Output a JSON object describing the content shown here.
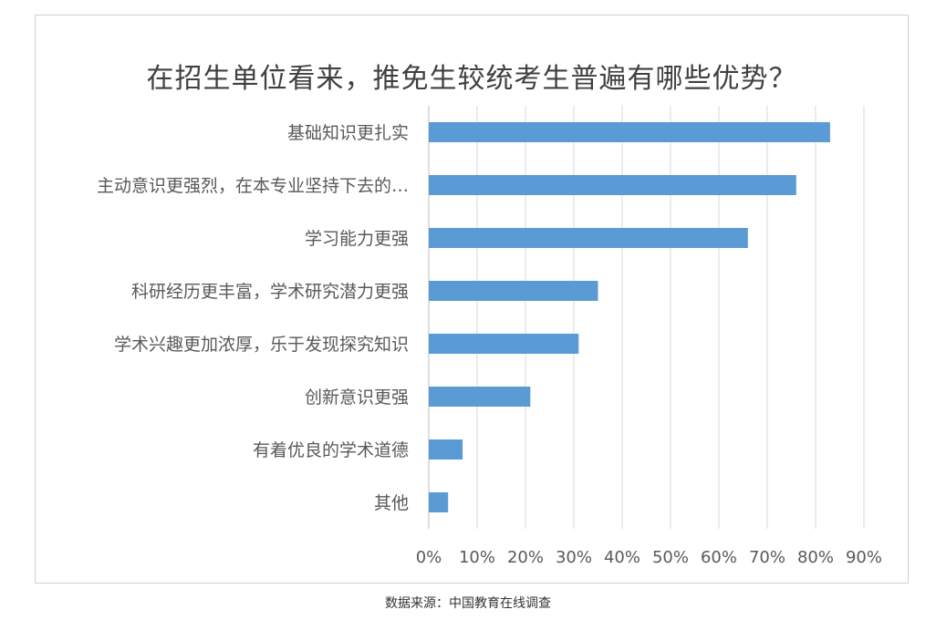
{
  "caption": "数据来源：中国教育在线调查",
  "chart_data": {
    "type": "bar",
    "orientation": "horizontal",
    "title": "在招生单位看来，推免生较统考生普遍有哪些优势？",
    "categories": [
      "基础知识更扎实",
      "主动意识更强烈，在本专业坚持下去的…",
      "学习能力更强",
      "科研经历更丰富，学术研究潜力更强",
      "学术兴趣更加浓厚，乐于发现探究知识",
      "创新意识更强",
      "有着优良的学术道德",
      "其他"
    ],
    "values": [
      83,
      76,
      66,
      35,
      31,
      21,
      7,
      4
    ],
    "unit": "%",
    "xlim": [
      0,
      90
    ],
    "xticks": [
      "0%",
      "10%",
      "20%",
      "30%",
      "40%",
      "50%",
      "60%",
      "70%",
      "80%",
      "90%"
    ],
    "grid": true,
    "legend": false,
    "bar_color": "#5b9bd5"
  }
}
